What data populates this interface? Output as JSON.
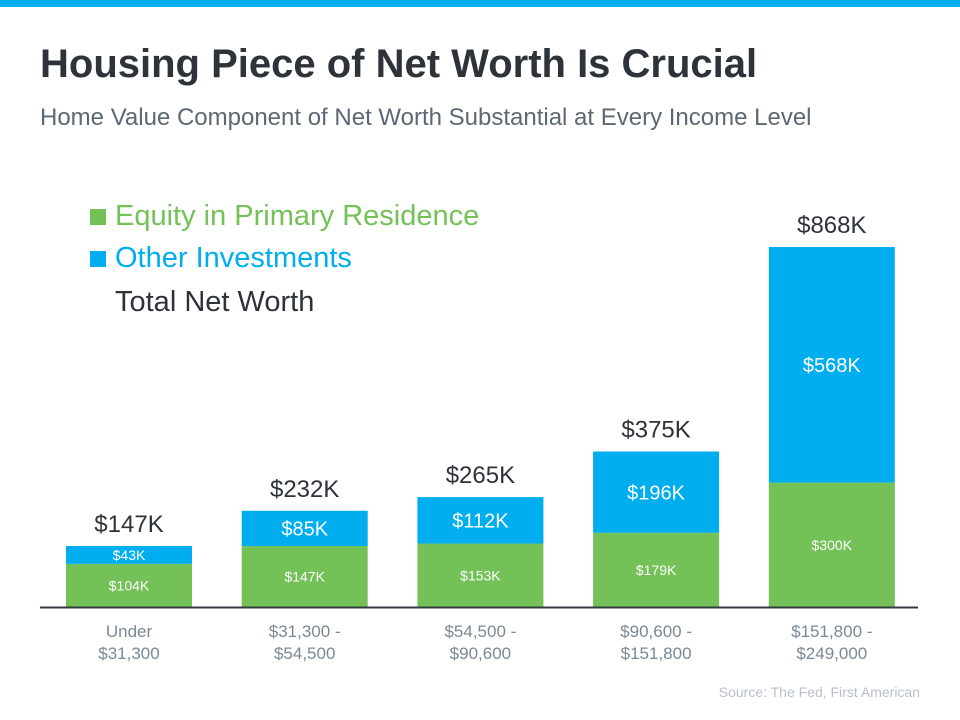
{
  "header": {
    "title": "Housing Piece of Net Worth Is Crucial",
    "subtitle": "Home Value Component of Net Worth Substantial at Every Income Level"
  },
  "colors": {
    "accent_bar": "#00aeef",
    "equity": "#74c158",
    "other": "#00aeef",
    "total_text": "#2d3339",
    "axis_label": "#7a8896"
  },
  "legend": [
    {
      "label": "Equity in Primary Residence",
      "color": "#74c158"
    },
    {
      "label": "Other Investments",
      "color": "#00aeef"
    },
    {
      "label": "Total Net Worth"
    }
  ],
  "source": "Source: The Fed, First American",
  "chart_data": {
    "type": "bar",
    "stacked": true,
    "grid": false,
    "legend_position": "top-left",
    "ylim": [
      0,
      900
    ],
    "categories": [
      "Under\n$31,300",
      "$31,300 -\n$54,500",
      "$54,500 -\n$90,600",
      "$90,600 -\n$151,800",
      "$151,800 -\n$249,000"
    ],
    "series": [
      {
        "name": "Equity in Primary Residence",
        "values": [
          104,
          147,
          153,
          179,
          300
        ],
        "labels": [
          "$104K",
          "$147K",
          "$153K",
          "$179K",
          "$300K"
        ]
      },
      {
        "name": "Other Investments",
        "values": [
          43,
          85,
          112,
          196,
          568
        ],
        "labels": [
          "$43K",
          "$85K",
          "$112K",
          "$196K",
          "$568K"
        ]
      }
    ],
    "totals": {
      "name": "Total Net Worth",
      "values": [
        147,
        232,
        265,
        375,
        868
      ],
      "labels": [
        "$147K",
        "$232K",
        "$265K",
        "$375K",
        "$868K"
      ]
    }
  }
}
